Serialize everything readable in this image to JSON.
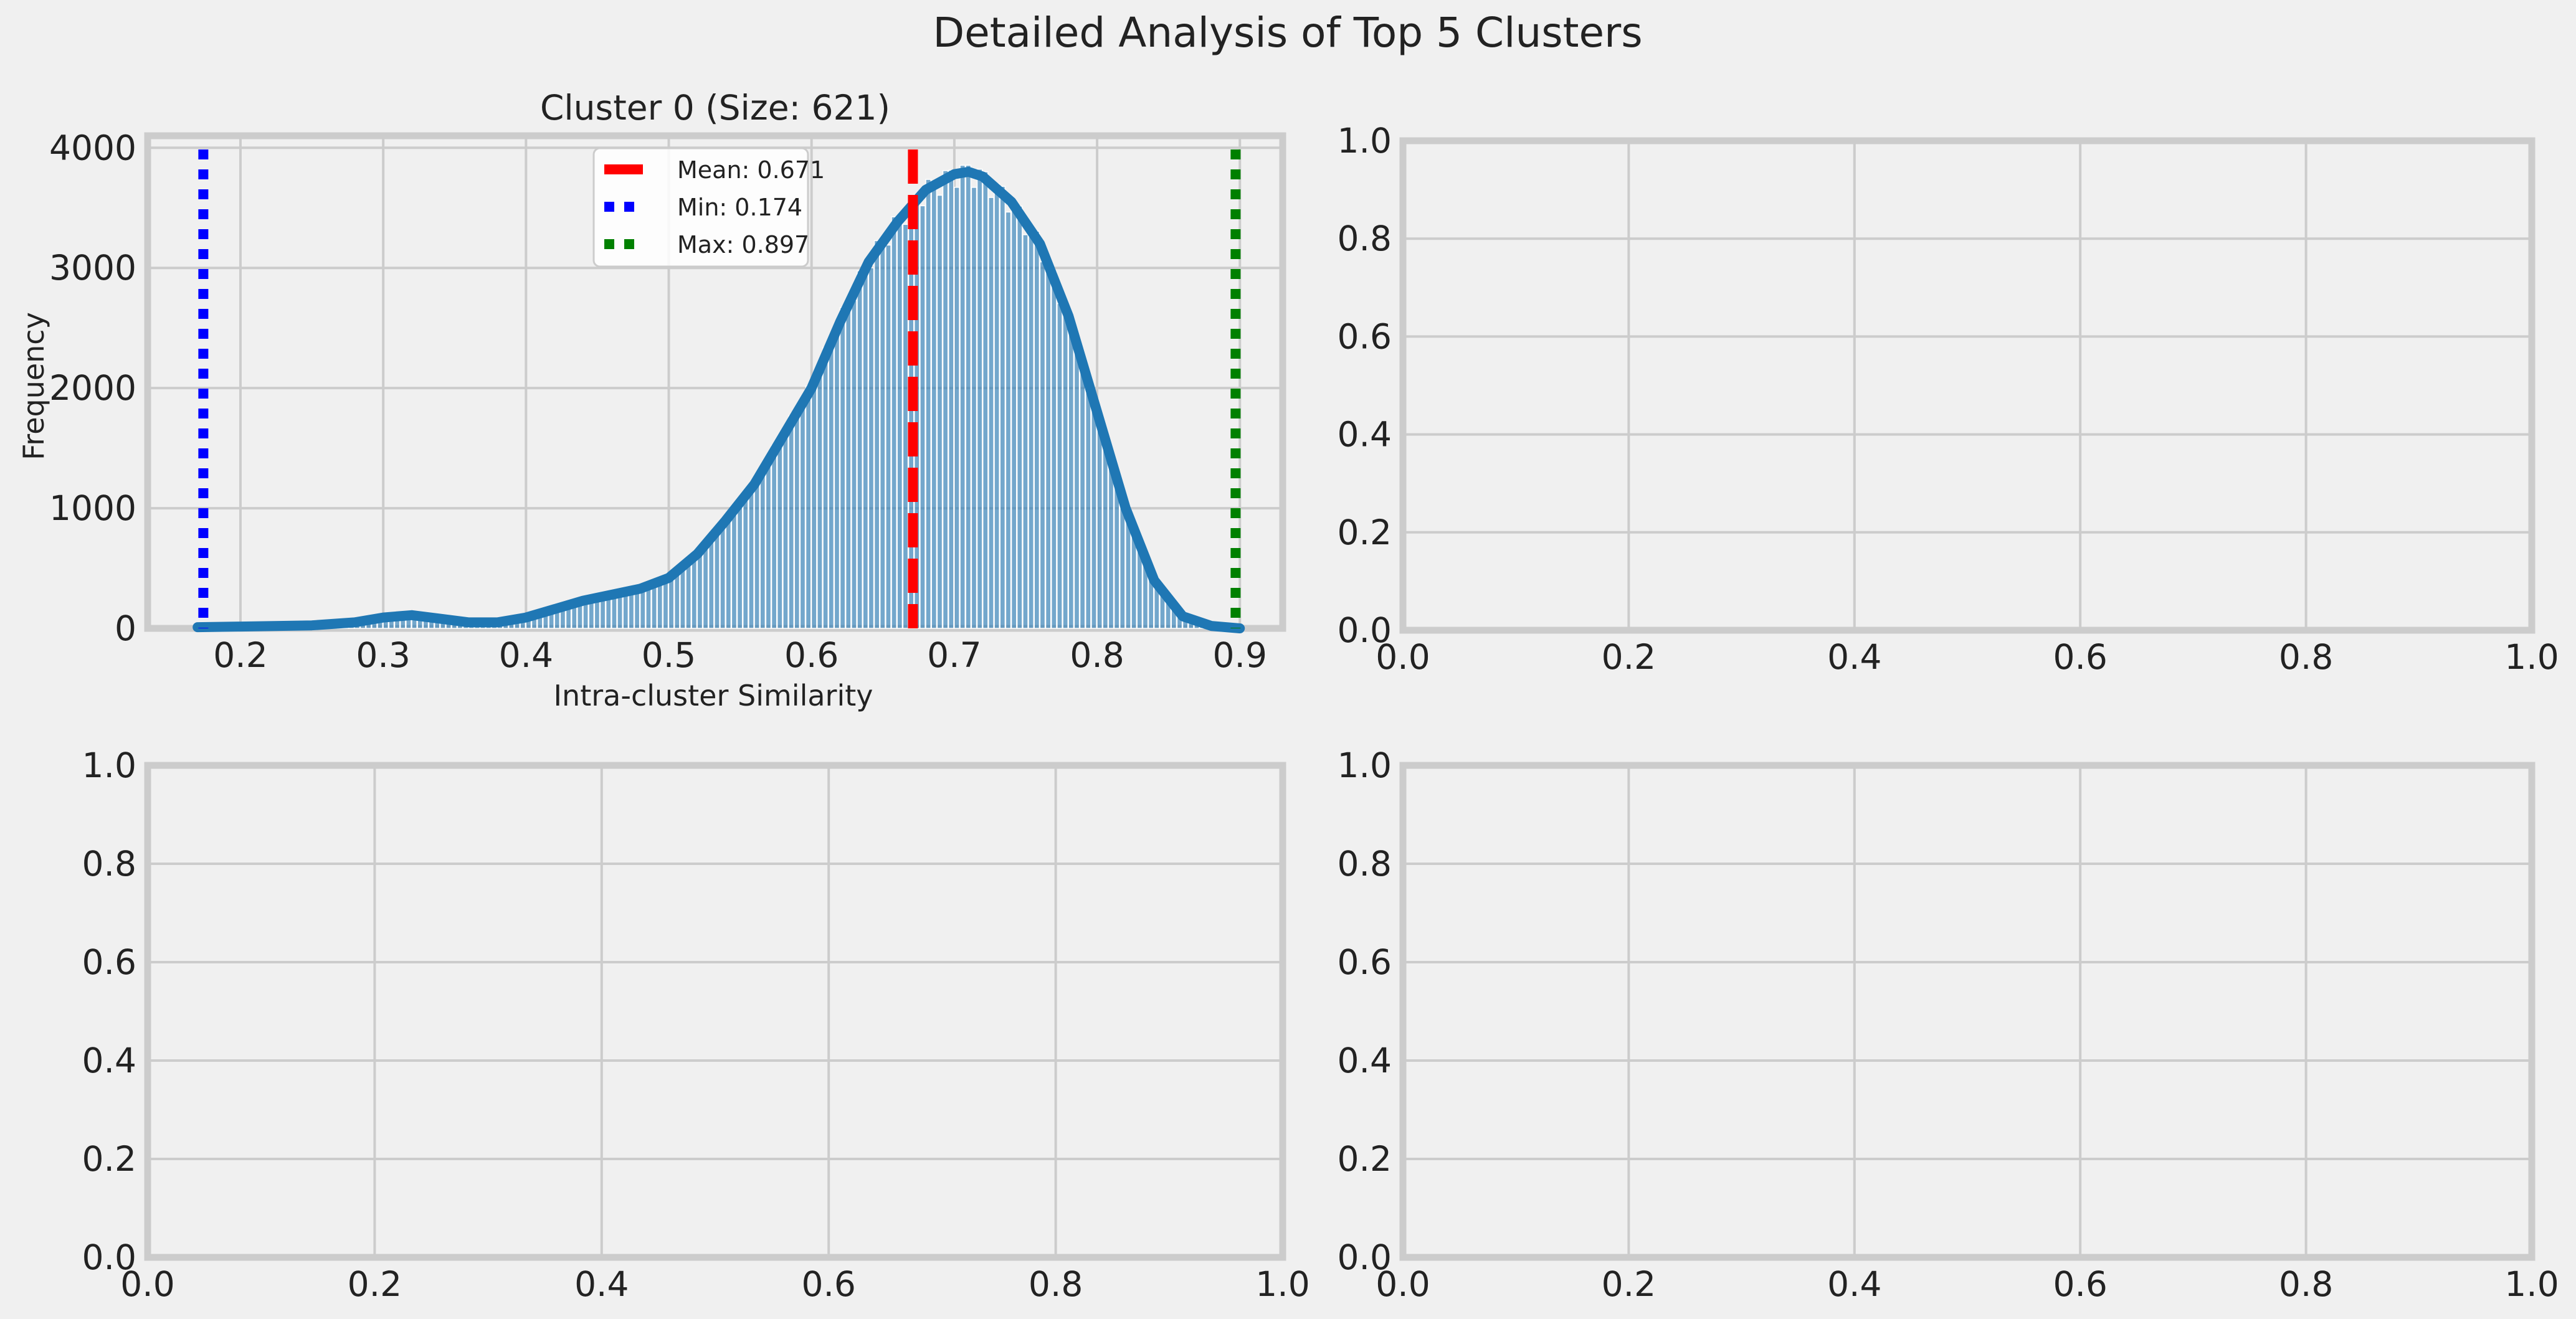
{
  "figure": {
    "title": "Detailed Analysis of Top 5 Clusters",
    "background": "#f0f0f0"
  },
  "chart_data": [
    {
      "type": "histogram",
      "title": "Cluster 0 (Size: 621)",
      "xlabel": "Intra-cluster Similarity",
      "ylabel": "Frequency",
      "xlim": [
        0.135,
        0.93
      ],
      "ylim": [
        0,
        4100
      ],
      "xticks": [
        0.2,
        0.3,
        0.4,
        0.5,
        0.6,
        0.7,
        0.8,
        0.9
      ],
      "xtick_labels": [
        "0.2",
        "0.3",
        "0.4",
        "0.5",
        "0.6",
        "0.7",
        "0.8",
        "0.9"
      ],
      "yticks": [
        0,
        1000,
        2000,
        3000,
        4000
      ],
      "ytick_labels": [
        "0",
        "1000",
        "2000",
        "3000",
        "4000"
      ],
      "grid": true,
      "bar_color": "#1f77b4",
      "kde_color": "#1f77b4",
      "kde": {
        "x": [
          0.17,
          0.2,
          0.25,
          0.28,
          0.3,
          0.32,
          0.34,
          0.36,
          0.38,
          0.4,
          0.42,
          0.44,
          0.46,
          0.48,
          0.5,
          0.52,
          0.54,
          0.56,
          0.58,
          0.6,
          0.62,
          0.64,
          0.66,
          0.68,
          0.7,
          0.71,
          0.72,
          0.74,
          0.76,
          0.78,
          0.8,
          0.82,
          0.84,
          0.86,
          0.88,
          0.9
        ],
        "y": [
          10,
          15,
          25,
          50,
          90,
          110,
          80,
          50,
          50,
          90,
          160,
          230,
          280,
          330,
          420,
          620,
          900,
          1200,
          1600,
          2000,
          2550,
          3050,
          3380,
          3650,
          3780,
          3800,
          3760,
          3550,
          3200,
          2600,
          1800,
          1000,
          400,
          100,
          20,
          0
        ]
      },
      "lines": [
        {
          "label": "Mean: 0.671",
          "x": 0.671,
          "color": "#ff0000",
          "style": "dashed"
        },
        {
          "label": "Min: 0.174",
          "x": 0.174,
          "color": "#0000ff",
          "style": "dotted"
        },
        {
          "label": "Max: 0.897",
          "x": 0.897,
          "color": "#008000",
          "style": "dotted"
        }
      ],
      "legend_position": "upper-center"
    },
    {
      "type": "empty",
      "xlim": [
        0,
        1
      ],
      "ylim": [
        0,
        1
      ],
      "ticks": [
        0,
        0.2,
        0.4,
        0.6,
        0.8,
        1.0
      ],
      "tick_labels": [
        "0.0",
        "0.2",
        "0.4",
        "0.6",
        "0.8",
        "1.0"
      ],
      "grid": true
    },
    {
      "type": "empty",
      "xlim": [
        0,
        1
      ],
      "ylim": [
        0,
        1
      ],
      "ticks": [
        0,
        0.2,
        0.4,
        0.6,
        0.8,
        1.0
      ],
      "tick_labels": [
        "0.0",
        "0.2",
        "0.4",
        "0.6",
        "0.8",
        "1.0"
      ],
      "grid": true
    },
    {
      "type": "empty",
      "xlim": [
        0,
        1
      ],
      "ylim": [
        0,
        1
      ],
      "ticks": [
        0,
        0.2,
        0.4,
        0.6,
        0.8,
        1.0
      ],
      "tick_labels": [
        "0.0",
        "0.2",
        "0.4",
        "0.6",
        "0.8",
        "1.0"
      ],
      "grid": true
    }
  ]
}
